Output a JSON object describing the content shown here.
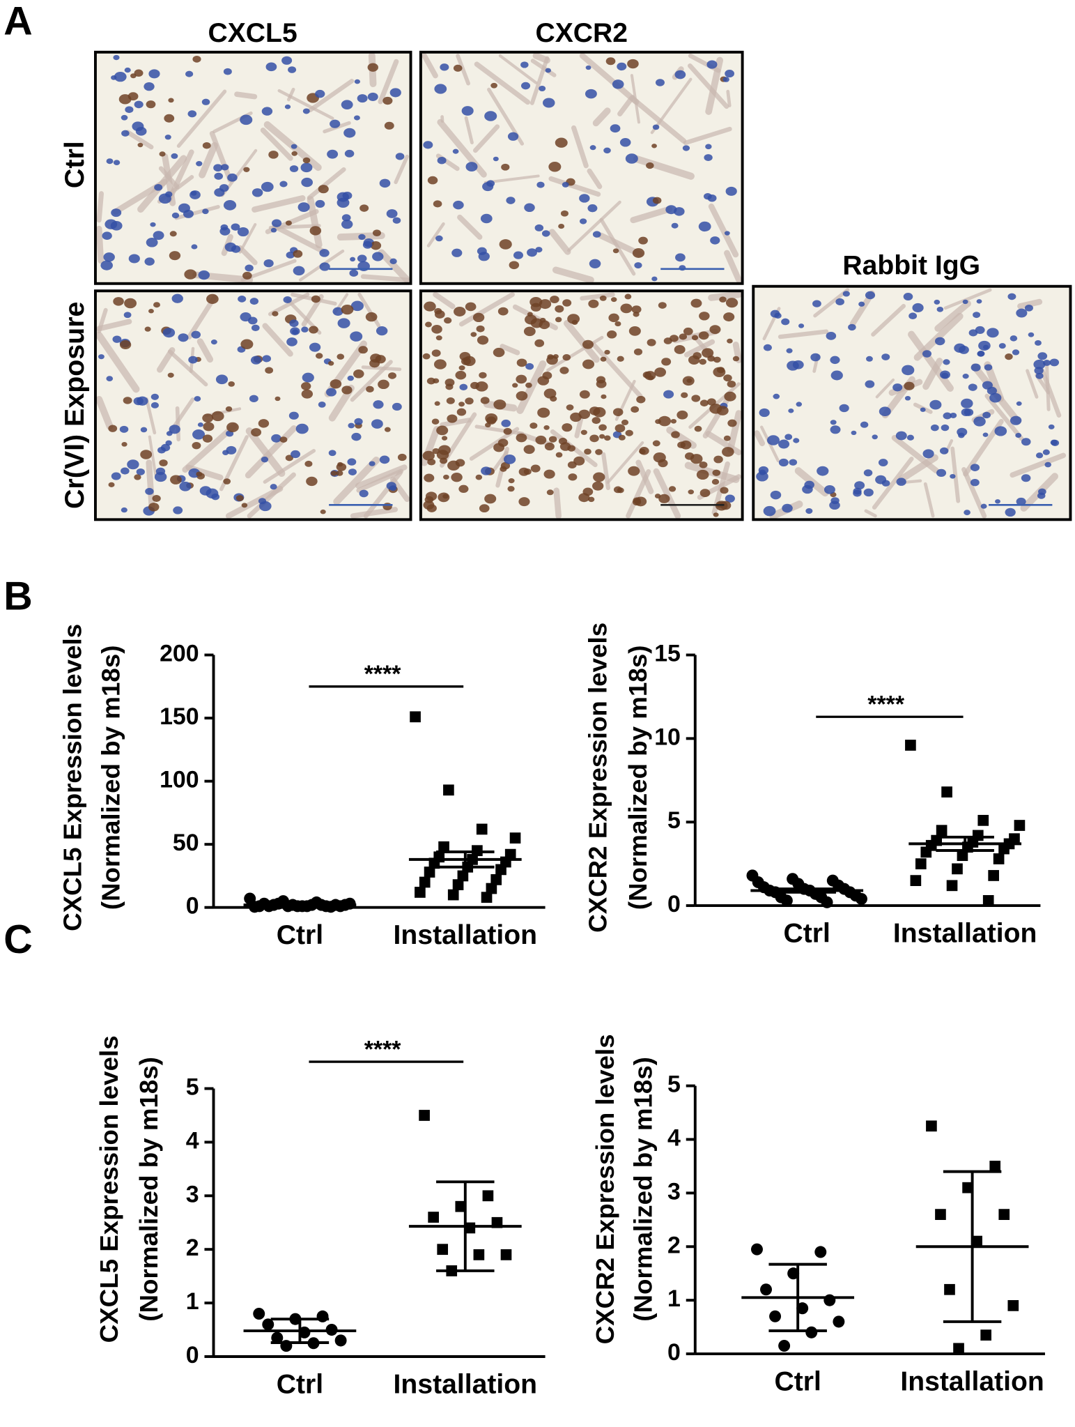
{
  "panel_a": {
    "label": "A",
    "columns": [
      "CXCL5",
      "CXCR2"
    ],
    "rows": [
      "Ctrl",
      "Cr(VI) Exposure"
    ],
    "control_label": "Rabbit IgG"
  },
  "panel_b": {
    "label": "B"
  },
  "panel_c": {
    "label": "C"
  },
  "chart_data": [
    {
      "type": "scatter",
      "ylabel": [
        "CXCL5 Expression levels",
        "(Normalized by m18s)"
      ],
      "categories": [
        "Ctrl",
        "Installation"
      ],
      "points": [
        [
          7,
          5,
          4,
          3,
          3,
          2,
          2,
          2,
          1,
          1,
          1,
          1,
          2,
          3,
          1,
          0.5,
          1,
          2,
          1,
          0.5,
          1,
          2
        ],
        [
          151,
          93,
          62,
          55,
          48,
          45,
          42,
          40,
          38,
          36,
          35,
          32,
          30,
          28,
          25,
          22,
          20,
          18,
          15,
          12,
          10,
          8
        ]
      ],
      "mean": [
        2,
        38
      ],
      "error": [
        0.5,
        6
      ],
      "markers": [
        "circle",
        "square"
      ],
      "color": "#000000",
      "ylim": [
        0,
        200
      ],
      "yticks": [
        0,
        50,
        100,
        150,
        200
      ],
      "significance": {
        "label": "****",
        "y": 175
      }
    },
    {
      "type": "scatter",
      "ylabel": [
        "CXCR2 Expression levels",
        "(Normalized by m18s)"
      ],
      "categories": [
        "Ctrl",
        "Installation"
      ],
      "points": [
        [
          1.8,
          1.6,
          1.5,
          1.4,
          1.3,
          1.2,
          1.1,
          1.0,
          1.0,
          0.9,
          0.9,
          0.8,
          0.8,
          0.7,
          0.6,
          0.5,
          0.5,
          0.4,
          0.3,
          0.2
        ],
        [
          9.6,
          6.8,
          5.1,
          4.8,
          4.5,
          4.2,
          4.0,
          3.9,
          3.8,
          3.7,
          3.6,
          3.5,
          3.4,
          3.2,
          3.0,
          2.8,
          2.5,
          2.2,
          1.8,
          1.5,
          1.2,
          0.3
        ]
      ],
      "mean": [
        0.9,
        3.7
      ],
      "error": [
        0.1,
        0.4
      ],
      "markers": [
        "circle",
        "square"
      ],
      "color": "#000000",
      "ylim": [
        0,
        15
      ],
      "yticks": [
        0,
        5,
        10,
        15
      ],
      "significance": {
        "label": "****",
        "y": 11.3
      }
    },
    {
      "type": "scatter",
      "ylabel": [
        "CXCL5 Expression levels",
        "(Normalized by m18s)"
      ],
      "categories": [
        "Ctrl",
        "Installation"
      ],
      "points": [
        [
          0.8,
          0.75,
          0.7,
          0.6,
          0.5,
          0.45,
          0.35,
          0.3,
          0.25,
          0.2
        ],
        [
          4.5,
          3.0,
          2.8,
          2.6,
          2.5,
          2.4,
          2.0,
          1.9,
          1.9,
          1.6
        ]
      ],
      "mean": [
        0.48,
        2.43
      ],
      "error": [
        0.22,
        0.83
      ],
      "markers": [
        "circle",
        "square"
      ],
      "color": "#000000",
      "ylim": [
        0,
        5
      ],
      "yticks": [
        0,
        1,
        2,
        3,
        4,
        5
      ],
      "significance": {
        "label": "****",
        "y": 5.5
      }
    },
    {
      "type": "scatter",
      "ylabel": [
        "CXCR2 Expression levels",
        "(Normalized by m18s)"
      ],
      "categories": [
        "Ctrl",
        "Installation"
      ],
      "points": [
        [
          1.95,
          1.9,
          1.5,
          1.2,
          1.0,
          0.85,
          0.7,
          0.6,
          0.4,
          0.15
        ],
        [
          4.25,
          3.5,
          3.1,
          2.6,
          2.6,
          2.1,
          1.2,
          0.9,
          0.35,
          0.1
        ]
      ],
      "mean": [
        1.05,
        2.0
      ],
      "error": [
        0.62,
        1.4
      ],
      "markers": [
        "circle",
        "square"
      ],
      "color": "#000000",
      "ylim": [
        0,
        5
      ],
      "yticks": [
        0,
        1,
        2,
        3,
        4,
        5
      ]
    }
  ]
}
